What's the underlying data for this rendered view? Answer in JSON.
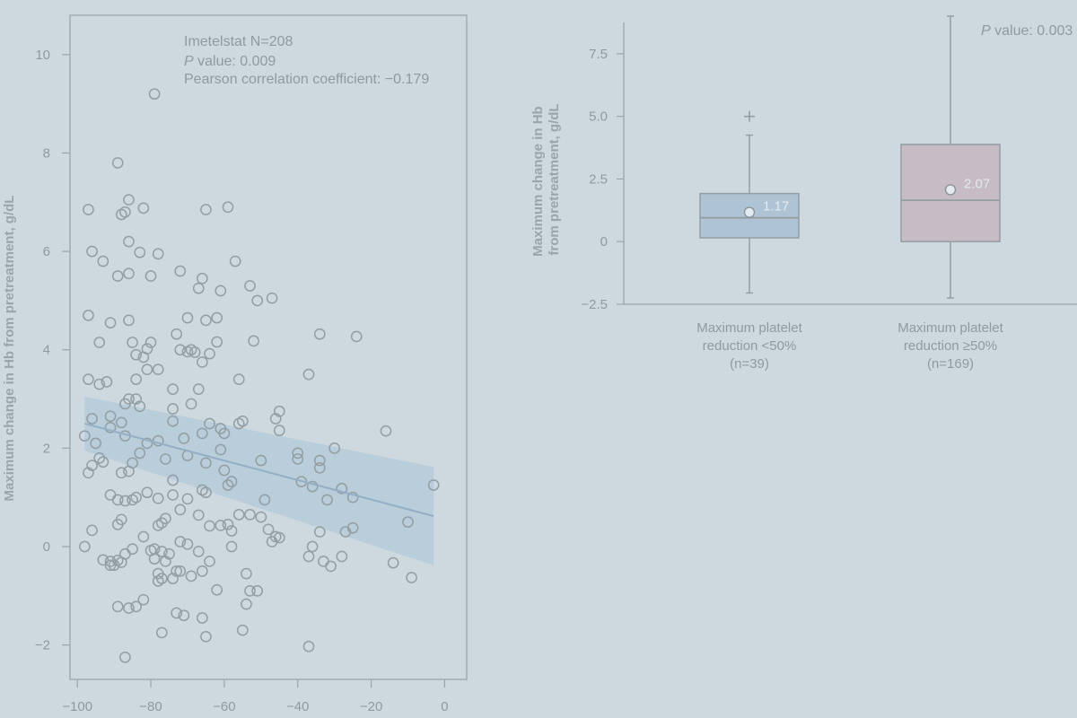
{
  "chart_data": [
    {
      "type": "scatter",
      "ylabel": "Maximum change in Hb from pretreatment, g/dL",
      "xlim": [
        -102,
        6
      ],
      "ylim": [
        -2.7,
        10.8
      ],
      "xticks": [
        -100,
        -80,
        -60,
        -40,
        -20,
        0
      ],
      "yticks": [
        -2,
        0,
        2,
        4,
        6,
        8,
        10
      ],
      "tick_labels": {
        "x": [
          "−100",
          "−80",
          "−60",
          "−40",
          "−20",
          "0"
        ],
        "y": [
          "−2",
          "0",
          "2",
          "4",
          "6",
          "8",
          "10"
        ]
      },
      "annotations": {
        "line1": "Imetelstat N=208",
        "line2_italic": "P",
        "line2_rest": " value: 0.009",
        "line3": "Pearson correlation coefficient: −0.179"
      },
      "regression": {
        "x": [
          -98,
          -3
        ],
        "y": [
          2.5,
          0.62
        ],
        "band_upper": [
          3.05,
          1.62
        ],
        "band_lower": [
          1.95,
          -0.38
        ],
        "color": "#b7cbd9"
      },
      "points": [
        [
          -79,
          9.2
        ],
        [
          -89,
          7.8
        ],
        [
          -97,
          6.85
        ],
        [
          -86,
          7.05
        ],
        [
          -82,
          6.88
        ],
        [
          -88,
          6.75
        ],
        [
          -87,
          6.8
        ],
        [
          -65,
          6.85
        ],
        [
          -59,
          6.9
        ],
        [
          -96,
          6.0
        ],
        [
          -93,
          5.8
        ],
        [
          -86,
          6.2
        ],
        [
          -83,
          5.98
        ],
        [
          -78,
          5.95
        ],
        [
          -89,
          5.5
        ],
        [
          -86,
          5.55
        ],
        [
          -80,
          5.5
        ],
        [
          -72,
          5.6
        ],
        [
          -67,
          5.25
        ],
        [
          -66,
          5.45
        ],
        [
          -61,
          5.2
        ],
        [
          -57,
          5.8
        ],
        [
          -53,
          5.3
        ],
        [
          -51,
          5.0
        ],
        [
          -47,
          5.05
        ],
        [
          -97,
          4.7
        ],
        [
          -91,
          4.55
        ],
        [
          -86,
          4.6
        ],
        [
          -94,
          4.15
        ],
        [
          -85,
          4.15
        ],
        [
          -80,
          4.15
        ],
        [
          -81,
          4.02
        ],
        [
          -70,
          4.65
        ],
        [
          -65,
          4.6
        ],
        [
          -62,
          4.65
        ],
        [
          -73,
          4.32
        ],
        [
          -72,
          4.0
        ],
        [
          -69,
          4.0
        ],
        [
          -66,
          3.75
        ],
        [
          -64,
          3.92
        ],
        [
          -62,
          4.16
        ],
        [
          -52,
          4.18
        ],
        [
          -34,
          4.32
        ],
        [
          -24,
          4.27
        ],
        [
          -97,
          3.4
        ],
        [
          -94,
          3.3
        ],
        [
          -92,
          3.35
        ],
        [
          -84,
          3.4
        ],
        [
          -81,
          3.6
        ],
        [
          -78,
          3.6
        ],
        [
          -82,
          3.85
        ],
        [
          -84,
          3.9
        ],
        [
          -70,
          3.96
        ],
        [
          -68,
          3.95
        ],
        [
          -74,
          3.2
        ],
        [
          -67,
          3.2
        ],
        [
          -56,
          3.4
        ],
        [
          -37,
          3.5
        ],
        [
          -86,
          3.0
        ],
        [
          -84,
          3.0
        ],
        [
          -87,
          2.9
        ],
        [
          -83,
          2.85
        ],
        [
          -69,
          2.9
        ],
        [
          -74,
          2.8
        ],
        [
          -74,
          2.55
        ],
        [
          -66,
          2.3
        ],
        [
          -64,
          2.5
        ],
        [
          -61,
          2.4
        ],
        [
          -60,
          2.3
        ],
        [
          -56,
          2.5
        ],
        [
          -55,
          2.55
        ],
        [
          -46,
          2.6
        ],
        [
          -45,
          2.75
        ],
        [
          -45,
          2.36
        ],
        [
          -96,
          2.6
        ],
        [
          -91,
          2.65
        ],
        [
          -88,
          2.52
        ],
        [
          -91,
          2.42
        ],
        [
          -98,
          2.25
        ],
        [
          -95,
          2.1
        ],
        [
          -87,
          2.25
        ],
        [
          -81,
          2.1
        ],
        [
          -83,
          1.9
        ],
        [
          -78,
          2.15
        ],
        [
          -71,
          2.2
        ],
        [
          -61,
          1.97
        ],
        [
          -40,
          1.9
        ],
        [
          -40,
          1.78
        ],
        [
          -30,
          2.0
        ],
        [
          -16,
          2.35
        ],
        [
          -96,
          1.65
        ],
        [
          -94,
          1.8
        ],
        [
          -93,
          1.72
        ],
        [
          -97,
          1.5
        ],
        [
          -88,
          1.5
        ],
        [
          -86,
          1.53
        ],
        [
          -85,
          1.7
        ],
        [
          -76,
          1.78
        ],
        [
          -70,
          1.85
        ],
        [
          -65,
          1.7
        ],
        [
          -60,
          1.55
        ],
        [
          -59,
          1.25
        ],
        [
          -58,
          1.32
        ],
        [
          -50,
          1.75
        ],
        [
          -39,
          1.32
        ],
        [
          -34,
          1.6
        ],
        [
          -34,
          1.75
        ],
        [
          -91,
          1.05
        ],
        [
          -89,
          0.95
        ],
        [
          -87,
          0.93
        ],
        [
          -85,
          0.95
        ],
        [
          -84,
          1.0
        ],
        [
          -81,
          1.1
        ],
        [
          -74,
          1.35
        ],
        [
          -74,
          1.05
        ],
        [
          -78,
          0.98
        ],
        [
          -70,
          0.97
        ],
        [
          -66,
          1.15
        ],
        [
          -65,
          1.1
        ],
        [
          -49,
          0.95
        ],
        [
          -36,
          1.22
        ],
        [
          -32,
          0.95
        ],
        [
          -28,
          1.18
        ],
        [
          -25,
          1.0
        ],
        [
          -3,
          1.25
        ],
        [
          -89,
          0.45
        ],
        [
          -88,
          0.55
        ],
        [
          -96,
          0.33
        ],
        [
          -78,
          0.43
        ],
        [
          -77,
          0.48
        ],
        [
          -76,
          0.57
        ],
        [
          -72,
          0.75
        ],
        [
          -67,
          0.64
        ],
        [
          -64,
          0.42
        ],
        [
          -61,
          0.43
        ],
        [
          -59,
          0.45
        ],
        [
          -58,
          0.32
        ],
        [
          -56,
          0.65
        ],
        [
          -53,
          0.65
        ],
        [
          -50,
          0.6
        ],
        [
          -48,
          0.35
        ],
        [
          -46,
          0.2
        ],
        [
          -45,
          0.18
        ],
        [
          -47,
          0.1
        ],
        [
          -34,
          0.3
        ],
        [
          -27,
          0.3
        ],
        [
          -25,
          0.38
        ],
        [
          -10,
          0.5
        ],
        [
          -98,
          0.0
        ],
        [
          -85,
          -0.05
        ],
        [
          -82,
          0.2
        ],
        [
          -80,
          -0.08
        ],
        [
          -79,
          -0.05
        ],
        [
          -77,
          -0.1
        ],
        [
          -75,
          -0.15
        ],
        [
          -72,
          0.1
        ],
        [
          -70,
          0.05
        ],
        [
          -67,
          -0.1
        ],
        [
          -58,
          0.0
        ],
        [
          -37,
          -0.2
        ],
        [
          -36,
          0.0
        ],
        [
          -33,
          -0.3
        ],
        [
          -31,
          -0.4
        ],
        [
          -28,
          -0.2
        ],
        [
          -14,
          -0.33
        ],
        [
          -9,
          -0.63
        ],
        [
          -93,
          -0.27
        ],
        [
          -91,
          -0.3
        ],
        [
          -89,
          -0.28
        ],
        [
          -91,
          -0.38
        ],
        [
          -90,
          -0.38
        ],
        [
          -88,
          -0.32
        ],
        [
          -87,
          -0.15
        ],
        [
          -79,
          -0.25
        ],
        [
          -76,
          -0.3
        ],
        [
          -73,
          -0.5
        ],
        [
          -72,
          -0.5
        ],
        [
          -69,
          -0.6
        ],
        [
          -66,
          -0.5
        ],
        [
          -64,
          -0.3
        ],
        [
          -78,
          -0.55
        ],
        [
          -77,
          -0.65
        ],
        [
          -78,
          -0.7
        ],
        [
          -74,
          -0.65
        ],
        [
          -62,
          -0.88
        ],
        [
          -54,
          -0.55
        ],
        [
          -53,
          -0.9
        ],
        [
          -51,
          -0.9
        ],
        [
          -54,
          -1.17
        ],
        [
          -82,
          -1.08
        ],
        [
          -89,
          -1.22
        ],
        [
          -86,
          -1.25
        ],
        [
          -84,
          -1.22
        ],
        [
          -73,
          -1.35
        ],
        [
          -71,
          -1.4
        ],
        [
          -66,
          -1.45
        ],
        [
          -55,
          -1.7
        ],
        [
          -77,
          -1.75
        ],
        [
          -65,
          -1.83
        ],
        [
          -37,
          -2.03
        ],
        [
          -87,
          -2.25
        ]
      ]
    },
    {
      "type": "box",
      "ylabel_line1": "Maximum change in Hb",
      "ylabel_line2": "from pretreatment, g/dL",
      "ylim": [
        -2.5,
        9.0
      ],
      "yticks": [
        -2.5,
        0,
        2.5,
        5.0,
        7.5
      ],
      "tick_labels": [
        "−2.5",
        "0",
        "2.5",
        "5.0",
        "7.5"
      ],
      "pvalue_italic": "P",
      "pvalue_rest": " value: 0.003",
      "groups": [
        {
          "label_lines": [
            "Maximum platelet",
            "reduction <50%",
            "(n=39)"
          ],
          "q1": 0.15,
          "median": 0.95,
          "q3": 1.92,
          "whisker_low": -2.05,
          "whisker_high": 4.25,
          "outliers": [
            5.0
          ],
          "mean": 1.17,
          "mean_label": "1.17",
          "color": "#aec3d4"
        },
        {
          "label_lines": [
            "Maximum platelet",
            "reduction ≥50%",
            "(n=169)"
          ],
          "q1": 0.0,
          "median": 1.65,
          "q3": 3.88,
          "whisker_low": -2.25,
          "whisker_high": 9.0,
          "outliers": [],
          "mean": 2.07,
          "mean_label": "2.07",
          "color": "#c8bcc4"
        }
      ]
    }
  ]
}
